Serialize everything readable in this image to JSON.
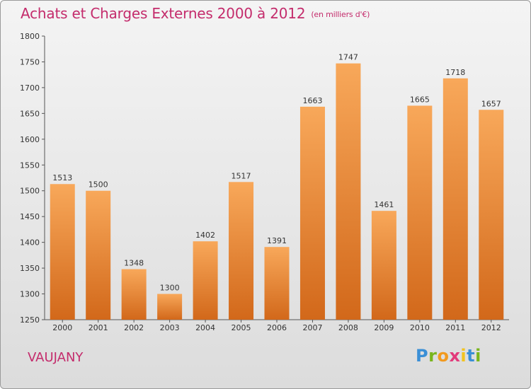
{
  "title": "Achats et Charges Externes 2000 à 2012",
  "subtitle": "(en milliers d'€)",
  "commune": "VAUJANY",
  "logo": {
    "letters": [
      "P",
      "r",
      "o",
      "x",
      "i",
      "t",
      "i"
    ],
    "colors": [
      "#3a8fd6",
      "#7ab51d",
      "#f29a1f",
      "#e23a7a",
      "#f2c31f",
      "#3a8fd6",
      "#7ab51d"
    ]
  },
  "colors": {
    "bar_top": "#f8a85a",
    "bar_bottom": "#d2681a",
    "title": "#c42c6c"
  },
  "chart_data": {
    "type": "bar",
    "categories": [
      "2000",
      "2001",
      "2002",
      "2003",
      "2004",
      "2005",
      "2006",
      "2007",
      "2008",
      "2009",
      "2010",
      "2011",
      "2012"
    ],
    "values": [
      1513,
      1500,
      1348,
      1300,
      1402,
      1517,
      1391,
      1663,
      1747,
      1461,
      1665,
      1718,
      1657
    ],
    "title": "Achats et Charges Externes 2000 à 2012",
    "subtitle": "(en milliers d'€)",
    "ylim": [
      1250,
      1800
    ],
    "yticks": [
      1250,
      1300,
      1350,
      1400,
      1450,
      1500,
      1550,
      1600,
      1650,
      1700,
      1750,
      1800
    ],
    "grid": false
  }
}
